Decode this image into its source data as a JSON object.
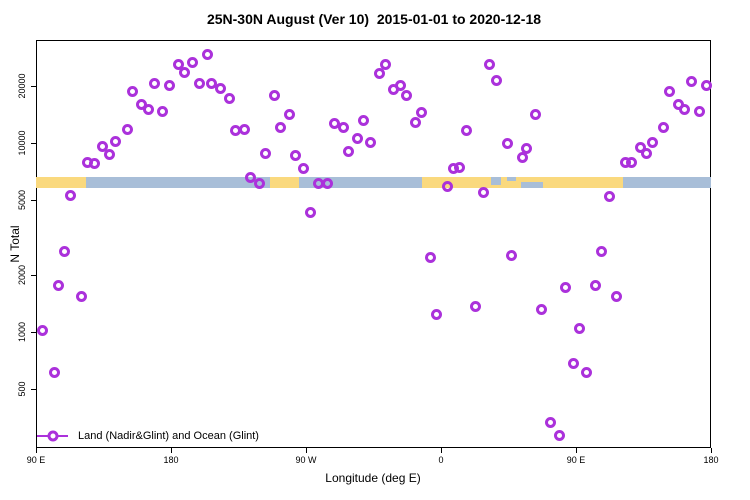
{
  "figure": {
    "title": "25N-30N August (Ver 10)  2015-01-01 to 2020-12-18",
    "x_label": "Longitude (deg E)",
    "y_label": "N Total",
    "legend": {
      "label": "Land (Nadir&Glint) and Ocean (Glint)",
      "position": "bottom-left"
    },
    "colors": {
      "marker": "#AB31DB",
      "land": "#FAD97E",
      "ocean": "#A8BED8",
      "axis": "#000000"
    }
  },
  "chart_data": {
    "type": "scatter",
    "title": "25N-30N August (Ver 10)  2015-01-01 to 2020-12-18",
    "xlabel": "Longitude (deg E)",
    "ylabel": "N Total",
    "x_domain": [
      90,
      540
    ],
    "y_domain": [
      243,
      35000
    ],
    "y_scale": "log10",
    "grid": false,
    "x_ticks": [
      {
        "v": 90,
        "label": "90 E"
      },
      {
        "v": 180,
        "label": "180"
      },
      {
        "v": 270,
        "label": "90 W"
      },
      {
        "v": 360,
        "label": "0"
      },
      {
        "v": 450,
        "label": "90 E"
      },
      {
        "v": 540,
        "label": "180"
      }
    ],
    "y_ticks": [
      500,
      1000,
      2000,
      5000,
      10000,
      20000
    ],
    "band": {
      "description": "land/ocean strip along longitude at 25N-30N",
      "n_range": [
        5770,
        6600
      ],
      "land_segments": [
        [
          90,
          123
        ],
        [
          246,
          265
        ],
        [
          347,
          481
        ]
      ],
      "ocean_patches": [
        {
          "lon": [
            393,
            400
          ],
          "frac": 0.7,
          "align": "top"
        },
        {
          "lon": [
            404,
            410
          ],
          "frac": 0.35,
          "align": "top"
        },
        {
          "lon": [
            413,
            428
          ],
          "frac": 0.5,
          "align": "bottom"
        }
      ]
    },
    "series": [
      {
        "name": "Land (Nadir&Glint) and Ocean (Glint)",
        "marker": "open-circle",
        "color": "#AB31DB",
        "points": [
          [
            204,
            29200
          ],
          [
            185.3,
            26100
          ],
          [
            194,
            26500
          ],
          [
            188.7,
            23700
          ],
          [
            169.3,
            20700
          ],
          [
            178.7,
            20000
          ],
          [
            198.7,
            20500
          ],
          [
            207.3,
            20500
          ],
          [
            213.3,
            19300
          ],
          [
            154,
            18800
          ],
          [
            218.7,
            17100
          ],
          [
            160,
            15900
          ],
          [
            164.7,
            15100
          ],
          [
            174,
            14600
          ],
          [
            150.7,
            11800
          ],
          [
            223.3,
            11600
          ],
          [
            229.3,
            11700
          ],
          [
            143.3,
            10200
          ],
          [
            134,
            9510
          ],
          [
            138.7,
            8630
          ],
          [
            242.7,
            8830
          ],
          [
            124,
            7830
          ],
          [
            129.3,
            7730
          ],
          [
            323.3,
            26100
          ],
          [
            318.7,
            23400
          ],
          [
            392,
            26100
          ],
          [
            396.7,
            21300
          ],
          [
            249.3,
            17700
          ],
          [
            328,
            19100
          ],
          [
            333.3,
            20000
          ],
          [
            337.3,
            17900
          ],
          [
            347.3,
            14400
          ],
          [
            259.3,
            14200
          ],
          [
            253.3,
            12000
          ],
          [
            289.3,
            12600
          ],
          [
            294.7,
            12100
          ],
          [
            308,
            13100
          ],
          [
            343.3,
            12800
          ],
          [
            377.3,
            11600
          ],
          [
            404,
            9980
          ],
          [
            304,
            10500
          ],
          [
            313.3,
            10000
          ],
          [
            298,
            8950
          ],
          [
            263.3,
            8530
          ],
          [
            268,
            7360
          ],
          [
            368,
            7280
          ],
          [
            372,
            7450
          ],
          [
            527.3,
            21000
          ],
          [
            536.7,
            20000
          ],
          [
            512,
            18800
          ],
          [
            518,
            15900
          ],
          [
            522,
            15100
          ],
          [
            532,
            14600
          ],
          [
            422.7,
            14100
          ],
          [
            508,
            12000
          ],
          [
            501.3,
            10100
          ],
          [
            492.7,
            9400
          ],
          [
            497.3,
            8730
          ],
          [
            417.3,
            9290
          ],
          [
            414,
            8410
          ],
          [
            482.7,
            7830
          ],
          [
            486.7,
            7830
          ],
          [
            112.7,
            5240
          ],
          [
            109.3,
            2650
          ],
          [
            104.7,
            1750
          ],
          [
            120,
            1530
          ],
          [
            233.3,
            6520
          ],
          [
            238.7,
            6130
          ],
          [
            278,
            6060
          ],
          [
            284,
            6130
          ],
          [
            364,
            5840
          ],
          [
            388,
            5430
          ],
          [
            273.3,
            4260
          ],
          [
            353.3,
            2460
          ],
          [
            383.3,
            1360
          ],
          [
            357.3,
            1240
          ],
          [
            472,
            5170
          ],
          [
            407.3,
            2520
          ],
          [
            467.3,
            2650
          ],
          [
            443.3,
            1710
          ],
          [
            462.7,
            1750
          ],
          [
            477.3,
            1530
          ],
          [
            427.3,
            1320
          ],
          [
            94,
            1020
          ],
          [
            102,
            607
          ],
          [
            452,
            1040
          ],
          [
            448,
            684
          ],
          [
            456.7,
            607
          ],
          [
            432.7,
            333
          ],
          [
            438.7,
            282
          ]
        ]
      }
    ]
  }
}
